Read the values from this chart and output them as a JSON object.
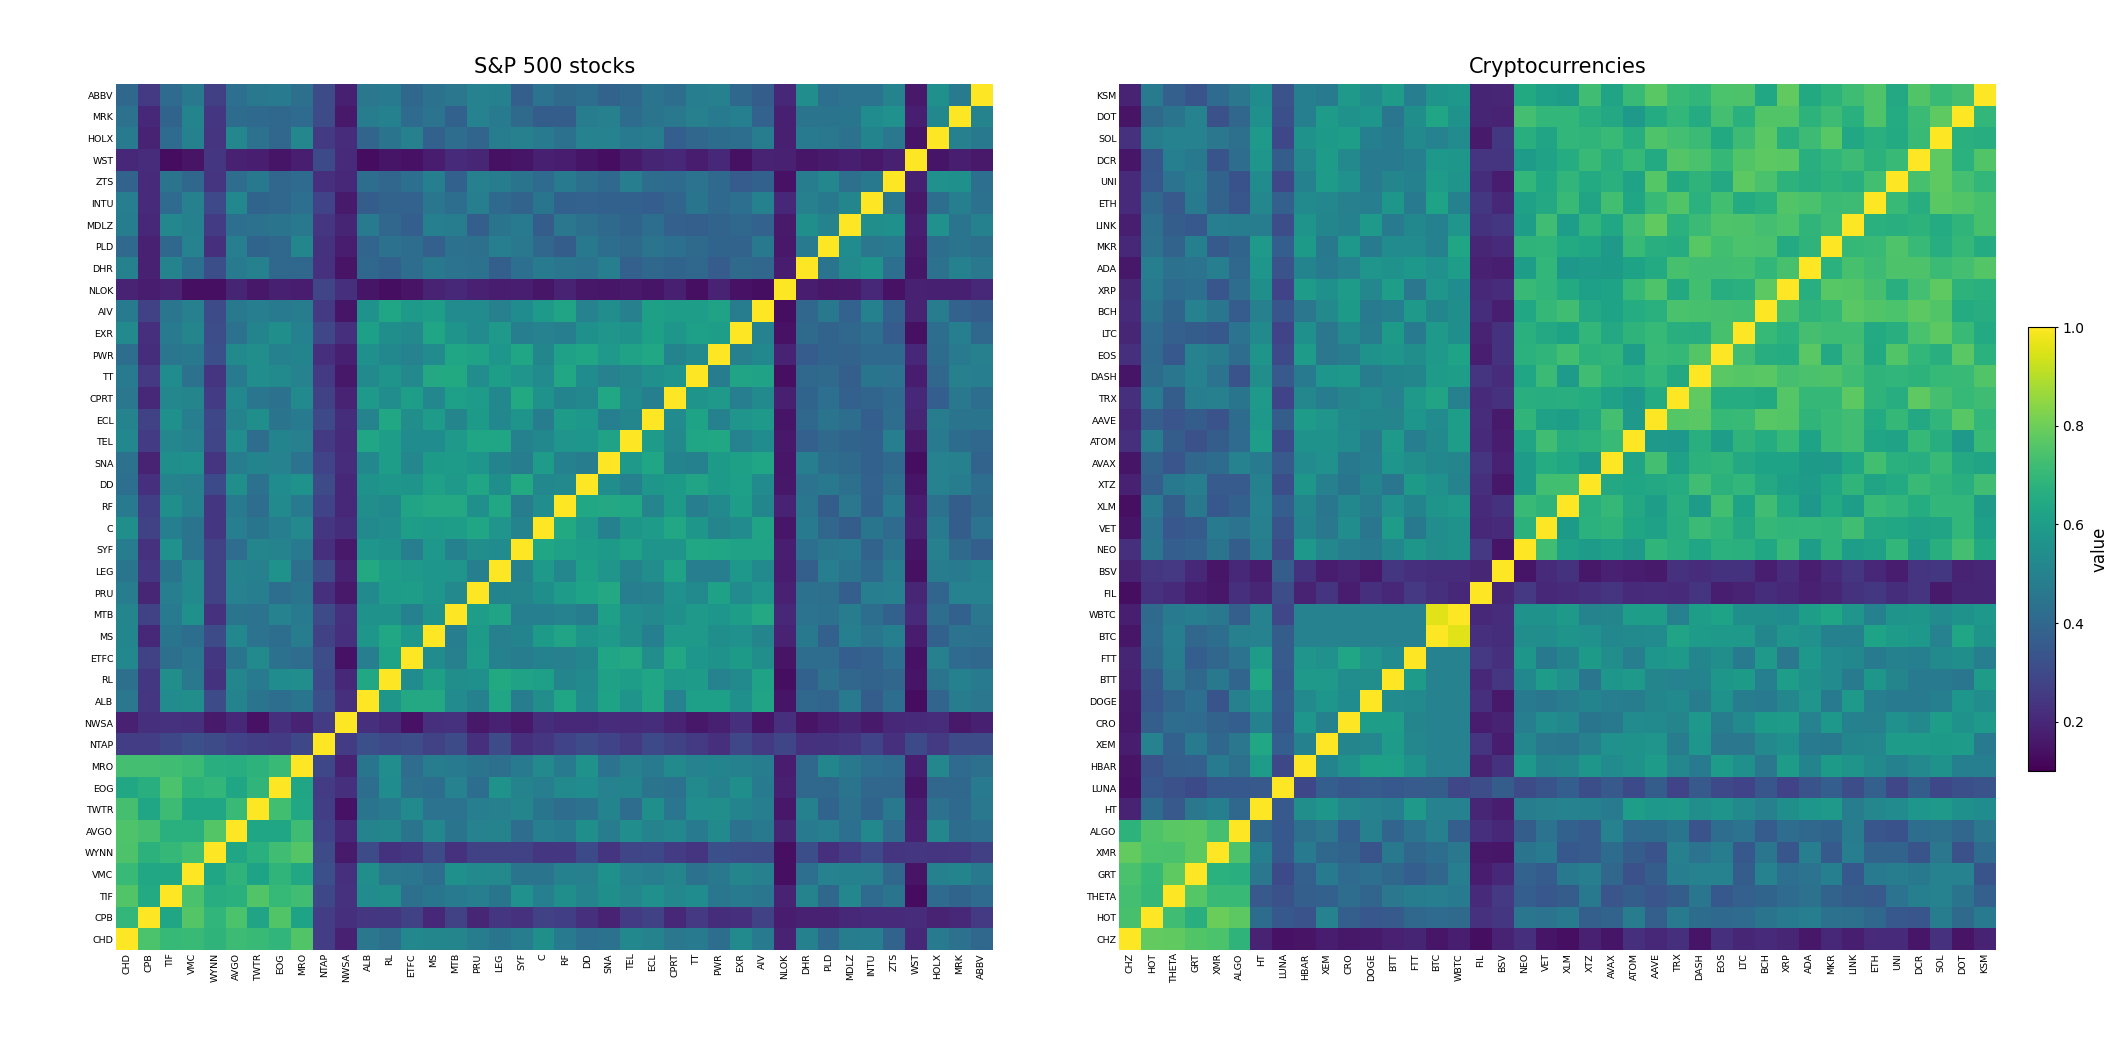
{
  "stocks_labels_top_to_bottom": [
    "ABBV",
    "MRK",
    "HOLX",
    "WST",
    "ZTS",
    "INTU",
    "MDLZ",
    "PLD",
    "DHR",
    "NLOK",
    "AIV",
    "EXR",
    "PWR",
    "TT",
    "CPRT",
    "ECL",
    "TEL",
    "SNA",
    "DD",
    "RF",
    "C",
    "SYF",
    "LEG",
    "PRU",
    "MTB",
    "MS",
    "ETFC",
    "RL",
    "ALB",
    "NWSA",
    "NTAP",
    "MRO",
    "EOG",
    "TWTR",
    "AVGO",
    "WYNN",
    "VMC",
    "TIF",
    "CPB",
    "CHD"
  ],
  "crypto_labels_top_to_bottom": [
    "KSM",
    "DOT",
    "SOL",
    "DCR",
    "UNI",
    "ETH",
    "LINK",
    "MKR",
    "ADA",
    "XRP",
    "BCH",
    "LTC",
    "EOS",
    "DASH",
    "TRX",
    "AAVE",
    "ATOM",
    "AVAX",
    "XTZ",
    "XLM",
    "VET",
    "NEO",
    "BSV",
    "FIL",
    "WBTC",
    "BTC",
    "FTT",
    "BTT",
    "DOGE",
    "CRO",
    "XEM",
    "HBAR",
    "LUNA",
    "HT",
    "ALGO",
    "XMR",
    "GRT",
    "THETA",
    "HOT",
    "CHZ"
  ],
  "title_stocks": "S&P 500 stocks",
  "title_crypto": "Cryptocurrencies",
  "colorbar_label": "value",
  "vmin": 0.1,
  "vmax": 1.0,
  "colormap": "viridis",
  "figsize": [
    21.12,
    10.56
  ],
  "dpi": 100,
  "background_color": "white",
  "colorbar_ticks": [
    0.2,
    0.4,
    0.6,
    0.8,
    1.0
  ]
}
